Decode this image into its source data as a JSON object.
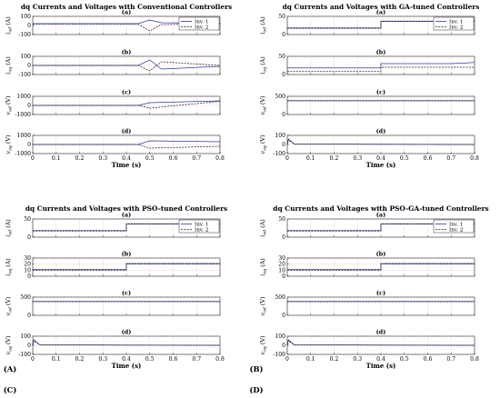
{
  "figure_labels": [
    "(A)",
    "(B)",
    "(C)",
    "(D)"
  ],
  "colors": {
    "inv1": "#2b36a8",
    "inv2": "#c41a1a",
    "inv2_dash": "#2a1a0a",
    "grid": "#e8a8a8",
    "axis": "#000000"
  },
  "chart_data": [
    {
      "type": "line",
      "title": "dq Currents and Voltages with Conventional Controllers",
      "figure_label": "(A)",
      "xlabel": "Time (s)",
      "xlim": [
        0,
        0.8
      ],
      "xticks": [
        "0",
        "0.1",
        "0.2",
        "0.3",
        "0.4",
        "0.5",
        "0.6",
        "0.7",
        "0.8"
      ],
      "legend": [
        "Inv. 1",
        "Inv. 2"
      ],
      "legend_position": "top-right of subplot (a)",
      "grid": true,
      "subplots": [
        {
          "label": "(a)",
          "ylabel": "i_od (A)",
          "ylim": [
            -100,
            100
          ],
          "yticks": [
            "-100",
            "0",
            "100"
          ],
          "series": [
            {
              "name": "Inv. 1",
              "x": [
                0,
                0.45,
                0.5,
                0.55,
                0.8
              ],
              "y": [
                20,
                20,
                60,
                30,
                25
              ]
            },
            {
              "name": "Inv. 2",
              "x": [
                0,
                0.45,
                0.5,
                0.55,
                0.8
              ],
              "y": [
                15,
                15,
                -60,
                10,
                20
              ]
            }
          ]
        },
        {
          "label": "(b)",
          "ylabel": "i_oq (A)",
          "ylim": [
            -100,
            100
          ],
          "yticks": [
            "-100",
            "0",
            "100"
          ],
          "series": [
            {
              "name": "Inv. 1",
              "x": [
                0,
                0.45,
                0.5,
                0.55,
                0.8
              ],
              "y": [
                0,
                0,
                60,
                -40,
                -10
              ]
            },
            {
              "name": "Inv. 2",
              "x": [
                0,
                0.45,
                0.5,
                0.55,
                0.8
              ],
              "y": [
                0,
                0,
                -60,
                40,
                0
              ]
            }
          ]
        },
        {
          "label": "(c)",
          "ylabel": "v_od (V)",
          "ylim": [
            -1000,
            1000
          ],
          "yticks": [
            "-1000",
            "0",
            "1000"
          ],
          "series": [
            {
              "name": "Inv. 1",
              "x": [
                0,
                0.45,
                0.5,
                0.8
              ],
              "y": [
                0,
                0,
                300,
                500
              ]
            },
            {
              "name": "Inv. 2",
              "x": [
                0,
                0.45,
                0.5,
                0.8
              ],
              "y": [
                0,
                0,
                -300,
                450
              ]
            }
          ]
        },
        {
          "label": "(d)",
          "ylabel": "v_oq (V)",
          "ylim": [
            -1000,
            1000
          ],
          "yticks": [
            "-1000",
            "0",
            "1000"
          ],
          "series": [
            {
              "name": "Inv. 1",
              "x": [
                0,
                0.45,
                0.5,
                0.8
              ],
              "y": [
                0,
                0,
                400,
                300
              ]
            },
            {
              "name": "Inv. 2",
              "x": [
                0,
                0.45,
                0.5,
                0.8
              ],
              "y": [
                0,
                0,
                -400,
                -200
              ]
            }
          ]
        }
      ]
    },
    {
      "type": "line",
      "title": "dq Currents and Voltages with GA-tuned Controllers",
      "figure_label": "(B)",
      "xlabel": "Time (s)",
      "xlim": [
        0,
        0.8
      ],
      "xticks": [
        "0",
        "0.1",
        "0.2",
        "0.3",
        "0.4",
        "0.5",
        "0.6",
        "0.7",
        "0.8"
      ],
      "legend": [
        "Inv. 1",
        "Inv. 2"
      ],
      "legend_position": "top-right of subplot (a)",
      "grid": true,
      "subplots": [
        {
          "label": "(a)",
          "ylabel": "i_od (A)",
          "ylim": [
            0,
            50
          ],
          "yticks": [
            "0",
            "50"
          ],
          "series": [
            {
              "name": "Inv. 1",
              "x": [
                0,
                0.4,
                0.4,
                0.8
              ],
              "y": [
                18,
                18,
                37,
                37
              ]
            },
            {
              "name": "Inv. 2",
              "x": [
                0,
                0.4,
                0.4,
                0.8
              ],
              "y": [
                17,
                17,
                36,
                36
              ]
            }
          ]
        },
        {
          "label": "(b)",
          "ylabel": "i_oq (A)",
          "ylim": [
            0,
            50
          ],
          "yticks": [
            "0",
            "50"
          ],
          "series": [
            {
              "name": "Inv. 1",
              "x": [
                0,
                0.4,
                0.4,
                0.7,
                0.8
              ],
              "y": [
                18,
                18,
                30,
                30,
                33
              ]
            },
            {
              "name": "Inv. 2",
              "x": [
                0,
                0.4,
                0.4,
                0.8
              ],
              "y": [
                8,
                8,
                20,
                20
              ]
            }
          ]
        },
        {
          "label": "(c)",
          "ylabel": "v_od (V)",
          "ylim": [
            0,
            500
          ],
          "yticks": [
            "0",
            "500"
          ],
          "series": [
            {
              "name": "Inv. 1",
              "x": [
                0,
                0.8
              ],
              "y": [
                380,
                380
              ]
            },
            {
              "name": "Inv. 2",
              "x": [
                0,
                0.8
              ],
              "y": [
                375,
                375
              ]
            }
          ]
        },
        {
          "label": "(d)",
          "ylabel": "v_oq (V)",
          "ylim": [
            -100,
            100
          ],
          "yticks": [
            "-100",
            "0",
            "100"
          ],
          "series": [
            {
              "name": "Inv. 1",
              "x": [
                0,
                0.005,
                0.03,
                0.8
              ],
              "y": [
                0,
                60,
                5,
                0
              ]
            },
            {
              "name": "Inv. 2",
              "x": [
                0,
                0.005,
                0.03,
                0.8
              ],
              "y": [
                0,
                50,
                3,
                0
              ]
            }
          ]
        }
      ]
    },
    {
      "type": "line",
      "title": "dq Currents and Voltages with PSO-tuned Controllers",
      "figure_label": "(C)",
      "xlabel": "Time (s)",
      "xlim": [
        0,
        0.8
      ],
      "xticks": [
        "0",
        "0.1",
        "0.2",
        "0.3",
        "0.4",
        "0.5",
        "0.6",
        "0.7",
        "0.8"
      ],
      "legend": [
        "Inv. 1",
        "Inv. 2"
      ],
      "legend_position": "top-right of subplot (a)",
      "grid": true,
      "subplots": [
        {
          "label": "(a)",
          "ylabel": "i_od (A)",
          "ylim": [
            0,
            50
          ],
          "yticks": [
            "0",
            "50"
          ],
          "series": [
            {
              "name": "Inv. 1",
              "x": [
                0,
                0.4,
                0.4,
                0.8
              ],
              "y": [
                18,
                18,
                37,
                37
              ]
            },
            {
              "name": "Inv. 2",
              "x": [
                0,
                0.4,
                0.4,
                0.8
              ],
              "y": [
                17,
                17,
                36,
                36
              ]
            }
          ]
        },
        {
          "label": "(b)",
          "ylabel": "i_oq (A)",
          "ylim": [
            0,
            30
          ],
          "yticks": [
            "0",
            "10",
            "20",
            "30"
          ],
          "series": [
            {
              "name": "Inv. 1",
              "x": [
                0,
                0.4,
                0.4,
                0.8
              ],
              "y": [
                11,
                11,
                21,
                21
              ]
            },
            {
              "name": "Inv. 2",
              "x": [
                0,
                0.4,
                0.4,
                0.8
              ],
              "y": [
                10,
                10,
                20,
                20
              ]
            }
          ]
        },
        {
          "label": "(c)",
          "ylabel": "v_od (V)",
          "ylim": [
            0,
            500
          ],
          "yticks": [
            "0",
            "500"
          ],
          "series": [
            {
              "name": "Inv. 1",
              "x": [
                0,
                0.8
              ],
              "y": [
                380,
                380
              ]
            },
            {
              "name": "Inv. 2",
              "x": [
                0,
                0.8
              ],
              "y": [
                375,
                375
              ]
            }
          ]
        },
        {
          "label": "(d)",
          "ylabel": "v_oq (V)",
          "ylim": [
            -100,
            100
          ],
          "yticks": [
            "-100",
            "0",
            "100"
          ],
          "series": [
            {
              "name": "Inv. 1",
              "x": [
                0,
                0.005,
                0.03,
                0.8
              ],
              "y": [
                0,
                60,
                5,
                0
              ]
            },
            {
              "name": "Inv. 2",
              "x": [
                0,
                0.005,
                0.03,
                0.8
              ],
              "y": [
                0,
                50,
                3,
                0
              ]
            }
          ]
        }
      ]
    },
    {
      "type": "line",
      "title": "dq Currents and Voltages with PSO-GA-tuned Controllers",
      "figure_label": "(D)",
      "xlabel": "Time (s)",
      "xlim": [
        0,
        0.8
      ],
      "xticks": [
        "0",
        "0.1",
        "0.2",
        "0.3",
        "0.4",
        "0.5",
        "0.6",
        "0.7",
        "0.8"
      ],
      "legend": [
        "Inv. 1",
        "Inv. 2"
      ],
      "legend_position": "top-right of subplot (a)",
      "grid": true,
      "subplots": [
        {
          "label": "(a)",
          "ylabel": "i_od (A)",
          "ylim": [
            0,
            50
          ],
          "yticks": [
            "0",
            "50"
          ],
          "series": [
            {
              "name": "Inv. 1",
              "x": [
                0,
                0.4,
                0.4,
                0.8
              ],
              "y": [
                18,
                18,
                37,
                37
              ]
            },
            {
              "name": "Inv. 2",
              "x": [
                0,
                0.4,
                0.4,
                0.8
              ],
              "y": [
                17,
                17,
                36,
                36
              ]
            }
          ]
        },
        {
          "label": "(b)",
          "ylabel": "i_oq (A)",
          "ylim": [
            0,
            30
          ],
          "yticks": [
            "0",
            "10",
            "20",
            "30"
          ],
          "series": [
            {
              "name": "Inv. 1",
              "x": [
                0,
                0.4,
                0.4,
                0.8
              ],
              "y": [
                11,
                11,
                21,
                21
              ]
            },
            {
              "name": "Inv. 2",
              "x": [
                0,
                0.4,
                0.4,
                0.8
              ],
              "y": [
                10,
                10,
                20,
                20
              ]
            }
          ]
        },
        {
          "label": "(c)",
          "ylabel": "v_od (V)",
          "ylim": [
            0,
            500
          ],
          "yticks": [
            "0",
            "500"
          ],
          "series": [
            {
              "name": "Inv. 1",
              "x": [
                0,
                0.8
              ],
              "y": [
                380,
                380
              ]
            },
            {
              "name": "Inv. 2",
              "x": [
                0,
                0.8
              ],
              "y": [
                375,
                375
              ]
            }
          ]
        },
        {
          "label": "(d)",
          "ylabel": "v_oq (V)",
          "ylim": [
            -100,
            100
          ],
          "yticks": [
            "-100",
            "0",
            "100"
          ],
          "series": [
            {
              "name": "Inv. 1",
              "x": [
                0,
                0.005,
                0.03,
                0.8
              ],
              "y": [
                0,
                60,
                5,
                0
              ]
            },
            {
              "name": "Inv. 2",
              "x": [
                0,
                0.005,
                0.03,
                0.8
              ],
              "y": [
                0,
                50,
                3,
                0
              ]
            }
          ]
        }
      ]
    }
  ]
}
